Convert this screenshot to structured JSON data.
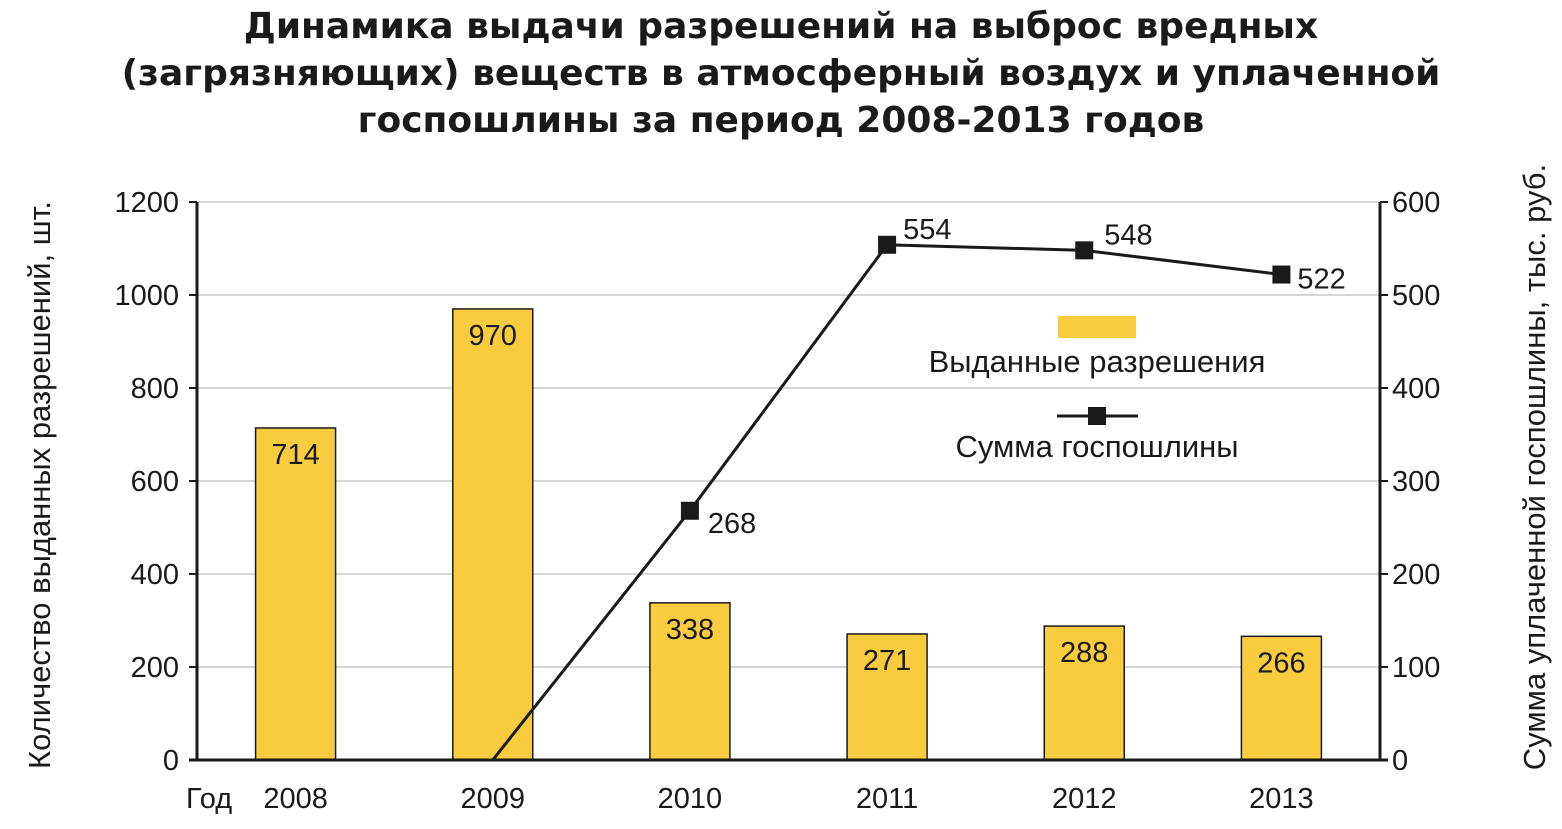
{
  "chart_data": {
    "type": "bar",
    "title_lines": [
      "Динамика выдачи разрешений на выброс вредных",
      "(загрязняющих) веществ в атмосферный воздух и уплаченной",
      "госпошлины за период 2008-2013 годов"
    ],
    "x_prefix": "Год",
    "categories": [
      "2008",
      "2009",
      "2010",
      "2011",
      "2012",
      "2013"
    ],
    "ylabel_left": "Количество выданных разрешений, шт.",
    "ylabel_right": "Сумма уплаченной госпошлины, тыс. руб.",
    "ylim_left": [
      0,
      1200
    ],
    "yticks_left": [
      0,
      200,
      400,
      600,
      800,
      1000,
      1200
    ],
    "ylim_right": [
      0,
      600
    ],
    "yticks_right": [
      0,
      100,
      200,
      300,
      400,
      500,
      600
    ],
    "grid": true,
    "legend_position": "right",
    "series": [
      {
        "name": "Выданные разрешения",
        "type": "bar",
        "axis": "left",
        "color": "#f9cb3f",
        "values": [
          714,
          970,
          338,
          271,
          288,
          266
        ],
        "labels": [
          "714",
          "970",
          "338",
          "271",
          "288",
          "266"
        ]
      },
      {
        "name": "Сумма госпошлины",
        "type": "line",
        "axis": "right",
        "color": "#1a1a1a",
        "line_start": {
          "x": "2009",
          "y": 0
        },
        "points": [
          {
            "x": "2010",
            "y": 268
          },
          {
            "x": "2011",
            "y": 554
          },
          {
            "x": "2012",
            "y": 548
          },
          {
            "x": "2013",
            "y": 522
          }
        ],
        "labels": [
          "268",
          "554",
          "548",
          "522"
        ]
      }
    ]
  }
}
